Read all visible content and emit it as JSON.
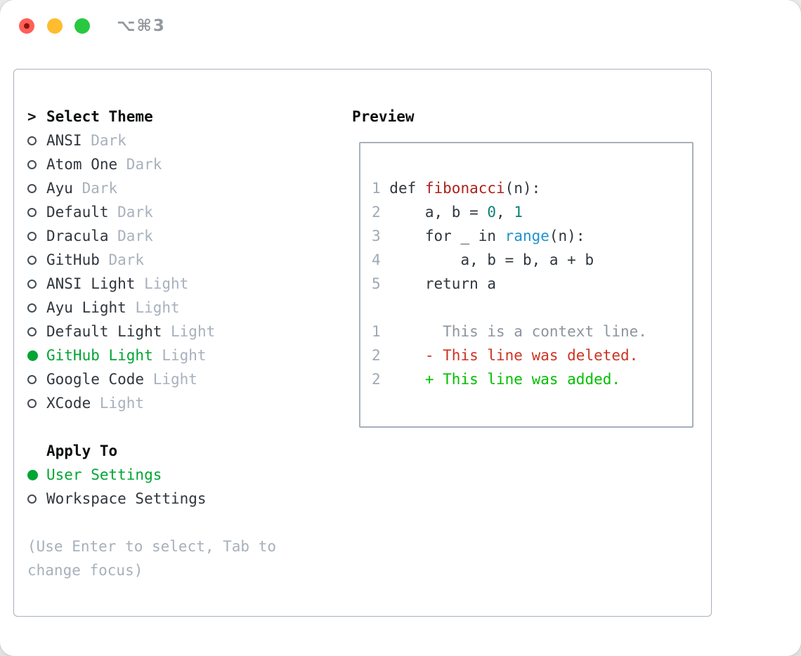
{
  "titlebar": {
    "title": "⌥⌘3",
    "traffic_lights": {
      "close": "#ff5f57",
      "close_dot": "#8c1410",
      "minimize": "#febc2e",
      "zoom": "#28c840"
    }
  },
  "theme_list": {
    "header_prefix": ">",
    "header": "Select Theme",
    "items": [
      {
        "name": "ANSI",
        "variant": "Dark",
        "selected": false
      },
      {
        "name": "Atom One",
        "variant": "Dark",
        "selected": false
      },
      {
        "name": "Ayu",
        "variant": "Dark",
        "selected": false
      },
      {
        "name": "Default",
        "variant": "Dark",
        "selected": false
      },
      {
        "name": "Dracula",
        "variant": "Dark",
        "selected": false
      },
      {
        "name": "GitHub",
        "variant": "Dark",
        "selected": false
      },
      {
        "name": "ANSI Light",
        "variant": "Light",
        "selected": false
      },
      {
        "name": "Ayu Light",
        "variant": "Light",
        "selected": false
      },
      {
        "name": "Default Light",
        "variant": "Light",
        "selected": false
      },
      {
        "name": "GitHub Light",
        "variant": "Light",
        "selected": true
      },
      {
        "name": "Google Code",
        "variant": "Light",
        "selected": false
      },
      {
        "name": "XCode",
        "variant": "Light",
        "selected": false
      }
    ]
  },
  "apply_to": {
    "header": "Apply To",
    "items": [
      {
        "name": "User Settings",
        "selected": true
      },
      {
        "name": "Workspace Settings",
        "selected": false
      }
    ]
  },
  "hint": "(Use Enter to select, Tab to change focus)",
  "preview": {
    "header": "Preview",
    "lines": [
      {
        "num": "1",
        "segs": [
          {
            "t": " def ",
            "s": "plain"
          },
          {
            "t": "fibonacci",
            "s": "func"
          },
          {
            "t": "(n):",
            "s": "plain"
          }
        ]
      },
      {
        "num": "2",
        "segs": [
          {
            "t": "     a, b = ",
            "s": "plain"
          },
          {
            "t": "0",
            "s": "num"
          },
          {
            "t": ", ",
            "s": "plain"
          },
          {
            "t": "1",
            "s": "num"
          }
        ]
      },
      {
        "num": "3",
        "segs": [
          {
            "t": "     for _ in ",
            "s": "plain"
          },
          {
            "t": "range",
            "s": "builtin"
          },
          {
            "t": "(n):",
            "s": "plain"
          }
        ]
      },
      {
        "num": "4",
        "segs": [
          {
            "t": "         a, b = b, a + b",
            "s": "plain"
          }
        ]
      },
      {
        "num": "5",
        "segs": [
          {
            "t": "     return a",
            "s": "plain"
          }
        ]
      },
      {
        "num": "",
        "segs": []
      },
      {
        "num": "1",
        "segs": [
          {
            "t": "       This is a context line.",
            "s": "ctx"
          }
        ]
      },
      {
        "num": "2",
        "segs": [
          {
            "t": "     ",
            "s": "plain"
          },
          {
            "t": "- This line was deleted.",
            "s": "del"
          }
        ]
      },
      {
        "num": "2",
        "segs": [
          {
            "t": "     ",
            "s": "plain"
          },
          {
            "t": "+ This line was added.",
            "s": "add"
          }
        ]
      }
    ]
  },
  "colors": {
    "item_text": "#30363d",
    "muted_gray": "#a7b1bd",
    "selection_green": "#00a532",
    "code_plain": "#2f363d",
    "func_red": "#ad221c",
    "number_teal": "#0e7e76",
    "builtin_blue": "#2292cc",
    "linenum_gray": "#9fa9b3",
    "context_gray": "#8d959e",
    "deleted_red": "#cc3322",
    "added_green": "#00bf00"
  }
}
